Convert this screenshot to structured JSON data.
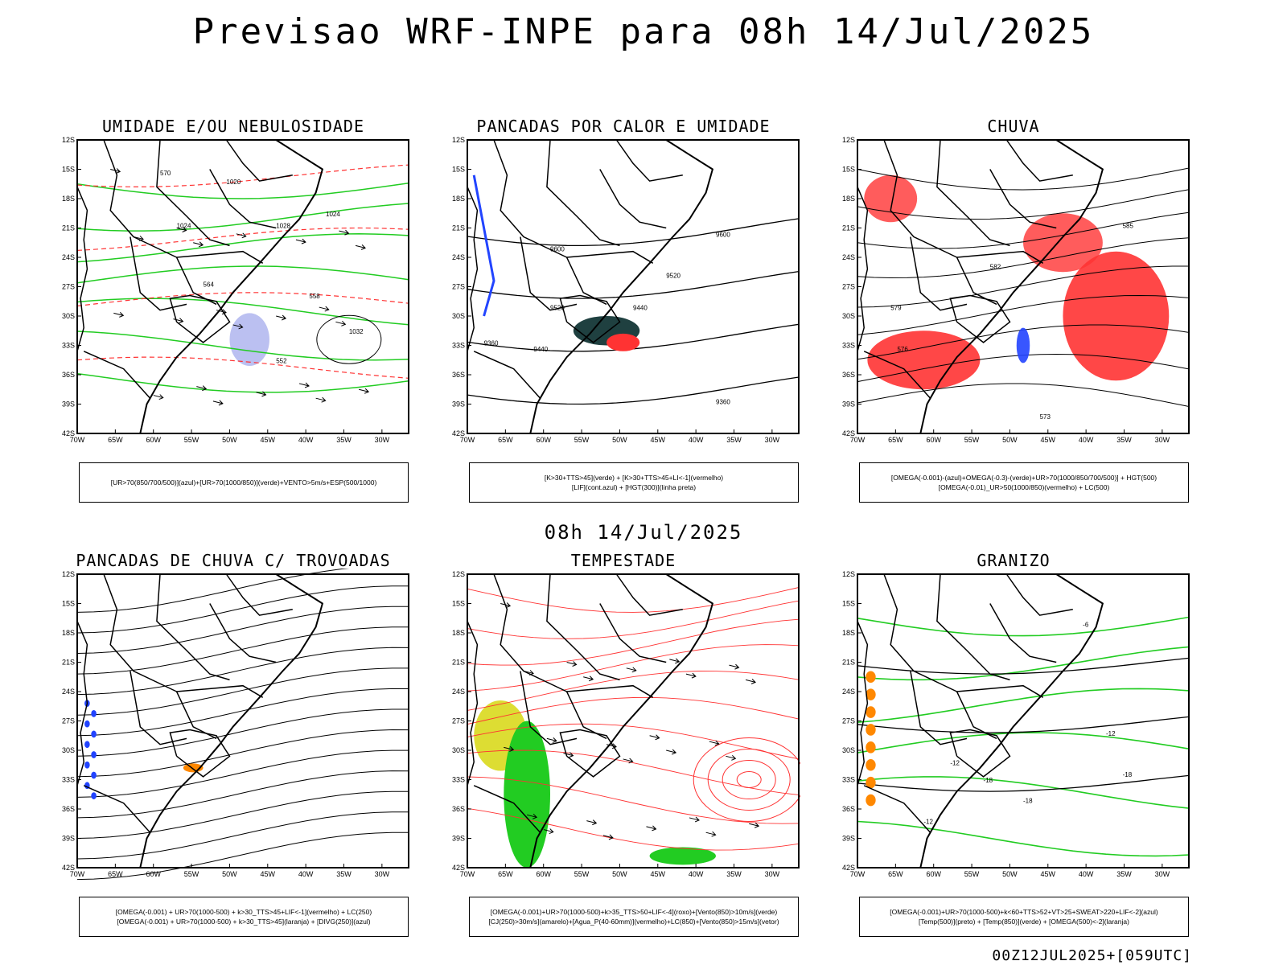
{
  "title": "Previsao WRF-INPE  para 08h 14/Jul/2025",
  "subtitle": "08h 14/Jul/2025",
  "footer": "00Z12JUL2025+[059UTC]",
  "axes": {
    "lat_ticks": [
      "12S",
      "15S",
      "18S",
      "21S",
      "24S",
      "27S",
      "30S",
      "33S",
      "36S",
      "39S",
      "42S"
    ],
    "lon_ticks": [
      "70W",
      "65W",
      "60W",
      "55W",
      "50W",
      "45W",
      "40W",
      "35W",
      "30W"
    ]
  },
  "colors": {
    "green": "#22cc22",
    "red": "#ff3333",
    "blue": "#2244ff",
    "lavender": "#aab0ee",
    "orange": "#ff8800",
    "yellow": "#dddd33",
    "dark": "#1f4040"
  },
  "panels": [
    {
      "id": "umidade",
      "title": "UMIDADE E/OU NEBULOSIDADE",
      "caption": [
        "[UR>70(850/700/500)](azul)+[UR>70(1000/850)](verde)+VENTO>5m/s+ESP(500/1000)"
      ],
      "contour_labels": [
        "1024",
        "1020",
        "1028",
        "1032",
        "1024",
        "570",
        "564",
        "558",
        "552"
      ]
    },
    {
      "id": "pancadas-calor",
      "title": "PANCADAS POR CALOR E UMIDADE",
      "caption": [
        "[K>30+TTS>45](verde) + [K>30+TTS>45+LI<-1](vermelho)",
        "[LIF](cont.azul) + [HGT(300)](linha preta)"
      ],
      "contour_labels": [
        "9600",
        "9520",
        "9440",
        "9360",
        "9600",
        "9520",
        "9440",
        "9360"
      ]
    },
    {
      "id": "chuva",
      "title": "CHUVA",
      "caption": [
        "[OMEGA(-0.001)-(azul)+OMEGA(-0.3)-(verde)+UR>70(1000/850/700/500)] + HGT(500)",
        "[OMEGA(-0.01)_UR>50(1000/850)(vermelho) + LC(500)"
      ],
      "contour_labels": [
        "585",
        "582",
        "579",
        "576",
        "573"
      ]
    },
    {
      "id": "pancadas-trovoadas",
      "title": "PANCADAS DE CHUVA C/ TROVOADAS",
      "caption": [
        "[OMEGA(-0.001) + UR>70(1000-500) + k>30_TTS>45+LIF<-1](vermelho) + LC(250)",
        "[OMEGA(-0.001) + UR>70(1000-500) + k>30_TTS>45](laranja) + [DIVG(250)](azul)"
      ],
      "contour_labels": []
    },
    {
      "id": "tempestade",
      "title": "TEMPESTADE",
      "caption": [
        "[OMEGA(-0.001)+UR>70(1000-500)+k>35_TTS>50+LIF<-4](roxo)+[Vento(850)>10m/s](verde)",
        "[CJ(250)>30m/s](amarelo)+[Agua_P(40-60mm)](vermelho)+LC(850)+[Vento(850)>15m/s](vetor)"
      ],
      "contour_labels": []
    },
    {
      "id": "granizo",
      "title": "GRANIZO",
      "caption": [
        "[OMEGA(-0.001)+UR>70(1000-500)+k<60+TTS>52+VT>25+SWEAT>220+LIF<-2](azul)",
        "[Temp(500)](preto) + [Temp(850)](verde) + [OMEGA(500)<-2](laranja)"
      ],
      "contour_labels": [
        "-6",
        "-12",
        "-12",
        "-18",
        "-18",
        "-18",
        "-12"
      ]
    }
  ]
}
